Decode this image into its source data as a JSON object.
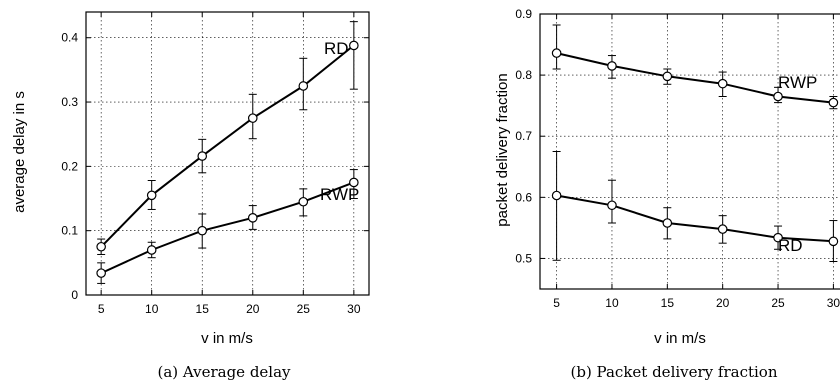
{
  "chart_data": [
    {
      "type": "line",
      "x": [
        5,
        10,
        15,
        20,
        25,
        30
      ],
      "xlabel": "v in m/s",
      "ylabel": "average delay in s",
      "xticks": [
        "5",
        "10",
        "15",
        "20",
        "25",
        "30"
      ],
      "yticks": [
        "0",
        "0.1",
        "0.2",
        "0.3",
        "0.4"
      ],
      "xlim": [
        3.5,
        31.5
      ],
      "ylim": [
        0,
        0.44
      ],
      "grid": true,
      "caption": "(a)  Average delay",
      "series": [
        {
          "name": "RD",
          "values": [
            0.075,
            0.155,
            0.216,
            0.275,
            0.325,
            0.388
          ],
          "err_low": [
            0.063,
            0.133,
            0.19,
            0.243,
            0.288,
            0.32
          ],
          "err_high": [
            0.087,
            0.178,
            0.242,
            0.312,
            0.368,
            0.425
          ]
        },
        {
          "name": "RWP",
          "values": [
            0.034,
            0.07,
            0.1,
            0.12,
            0.145,
            0.175
          ],
          "err_low": [
            0.018,
            0.058,
            0.073,
            0.102,
            0.123,
            0.15
          ],
          "err_high": [
            0.05,
            0.082,
            0.126,
            0.139,
            0.165,
            0.195
          ]
        }
      ]
    },
    {
      "type": "line",
      "x": [
        5,
        10,
        15,
        20,
        25,
        30
      ],
      "xlabel": "v in m/s",
      "ylabel": "packet delivery fraction",
      "xticks": [
        "5",
        "10",
        "15",
        "20",
        "25",
        "30"
      ],
      "yticks": [
        "0.5",
        "0.6",
        "0.7",
        "0.8",
        "0.9"
      ],
      "xlim": [
        3.5,
        31.5
      ],
      "ylim": [
        0.45,
        0.9
      ],
      "grid": true,
      "caption": "(b)  Packet delivery fraction",
      "series": [
        {
          "name": "RWP",
          "values": [
            0.836,
            0.815,
            0.798,
            0.786,
            0.765,
            0.755
          ],
          "err_low": [
            0.81,
            0.795,
            0.785,
            0.765,
            0.755,
            0.745
          ],
          "err_high": [
            0.882,
            0.832,
            0.81,
            0.805,
            0.78,
            0.765
          ]
        },
        {
          "name": "RD",
          "values": [
            0.603,
            0.587,
            0.558,
            0.548,
            0.534,
            0.528
          ],
          "err_low": [
            0.497,
            0.558,
            0.532,
            0.525,
            0.515,
            0.495
          ],
          "err_high": [
            0.675,
            0.628,
            0.583,
            0.57,
            0.553,
            0.562
          ]
        }
      ]
    }
  ]
}
